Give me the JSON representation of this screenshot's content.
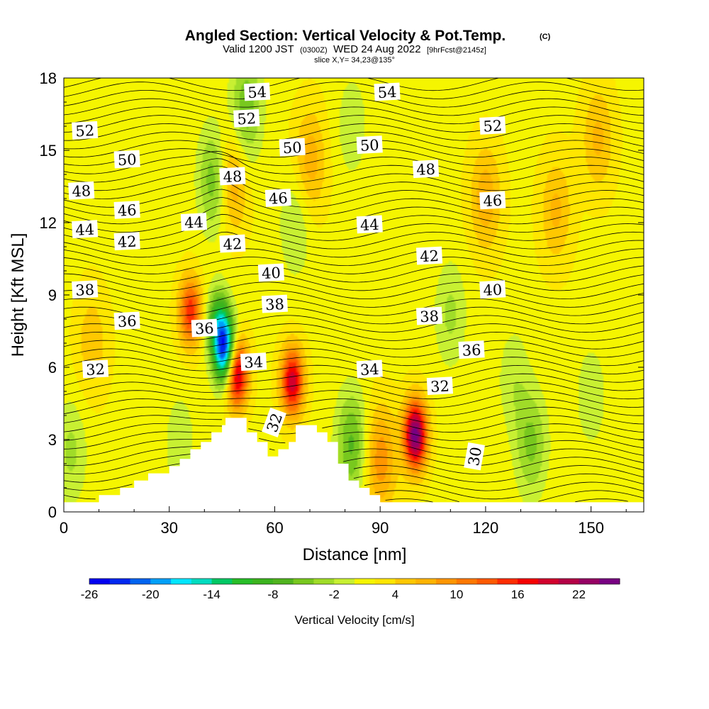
{
  "chart_data": {
    "type": "heatmap",
    "title": "Angled Section: Vertical Velocity & Pot.Temp.",
    "title_tag": "(C)",
    "subtitle_parts": [
      "Valid 1200 JST",
      "(0300Z)",
      "WED 24 Aug 2022",
      "[9hrFcst@2145z]"
    ],
    "slice_text": "slice X,Y= 34,23@135°",
    "xlabel": "Distance [nm]",
    "ylabel": "Height [Kft MSL]",
    "xlim": [
      0,
      165
    ],
    "ylim": [
      0,
      18
    ],
    "x_ticks": [
      0,
      30,
      60,
      90,
      120,
      150
    ],
    "y_ticks": [
      0,
      3,
      6,
      9,
      12,
      15,
      18
    ],
    "colorbar": {
      "title": "Vertical Velocity [cm/s]",
      "tick_labels": [
        -26,
        -20,
        -14,
        -8,
        -2,
        4,
        10,
        16,
        22
      ],
      "levels": [
        -26,
        -24,
        -22,
        -20,
        -18,
        -16,
        -14,
        -12,
        -10,
        -8,
        -6,
        -4,
        -2,
        0,
        2,
        4,
        6,
        8,
        10,
        12,
        14,
        16,
        18,
        20,
        22,
        24
      ],
      "colors": [
        "#0000f0",
        "#0028f0",
        "#0064f0",
        "#00a0f8",
        "#00e6ff",
        "#00dcc0",
        "#00c864",
        "#28be28",
        "#3cb41e",
        "#50b41e",
        "#78c81e",
        "#a0dc28",
        "#c8f032",
        "#f5f500",
        "#ffe600",
        "#ffc800",
        "#ffb400",
        "#ff9600",
        "#ff7800",
        "#ff5a00",
        "#ff2d00",
        "#f50000",
        "#d2002d",
        "#b40046",
        "#960064",
        "#780082"
      ]
    },
    "velocity_features": [
      {
        "x": 46,
        "y": 6.6,
        "value": -24
      },
      {
        "x": 44,
        "y": 7.8,
        "value": -12
      },
      {
        "x": 43,
        "y": 13.8,
        "value": -8
      },
      {
        "x": 52,
        "y": 17.0,
        "value": -6
      },
      {
        "x": 50,
        "y": 15.0,
        "value": -4
      },
      {
        "x": 66,
        "y": 12.0,
        "value": -4
      },
      {
        "x": 82,
        "y": 16.0,
        "value": -3
      },
      {
        "x": 82,
        "y": 2.8,
        "value": -8
      },
      {
        "x": 110,
        "y": 8.2,
        "value": -4
      },
      {
        "x": 128,
        "y": 5.5,
        "value": -3
      },
      {
        "x": 133,
        "y": 2.8,
        "value": -6
      },
      {
        "x": 150,
        "y": 4.8,
        "value": -3
      },
      {
        "x": 2,
        "y": 2.5,
        "value": -4
      },
      {
        "x": 33,
        "y": 2.8,
        "value": -3
      },
      {
        "x": 49,
        "y": 5.8,
        "value": 22
      },
      {
        "x": 48,
        "y": 14.0,
        "value": 10
      },
      {
        "x": 36,
        "y": 8.3,
        "value": 14
      },
      {
        "x": 65,
        "y": 5.4,
        "value": 18
      },
      {
        "x": 100,
        "y": 3.2,
        "value": 24
      },
      {
        "x": 90,
        "y": 2.2,
        "value": 8
      },
      {
        "x": 70,
        "y": 14.5,
        "value": 6
      },
      {
        "x": 120,
        "y": 13.0,
        "value": 6
      },
      {
        "x": 140,
        "y": 12.5,
        "value": 5
      },
      {
        "x": 152,
        "y": 15.5,
        "value": 5
      },
      {
        "x": 8,
        "y": 7.0,
        "value": 4
      }
    ],
    "theta_contours": [
      29,
      29.5,
      30,
      30.5,
      31,
      31.5,
      32,
      32.5,
      33,
      33.5,
      34,
      34.5,
      35,
      35.5,
      36,
      36.5,
      37,
      37.5,
      38,
      38.5,
      39,
      39.5,
      40,
      40.5,
      41,
      41.5,
      42,
      42.5,
      43,
      43.5,
      44,
      44.5,
      45,
      45.5,
      46,
      46.5,
      47,
      47.5,
      48,
      48.5,
      49,
      49.5,
      50,
      50.5,
      51,
      51.5,
      52,
      52.5,
      53,
      53.5,
      54,
      54.5
    ],
    "contour_labels": [
      {
        "text": "54",
        "x": 55,
        "y": 17.4
      },
      {
        "text": "54",
        "x": 92,
        "y": 17.4
      },
      {
        "text": "52",
        "x": 6,
        "y": 15.8
      },
      {
        "text": "52",
        "x": 52,
        "y": 16.3
      },
      {
        "text": "52",
        "x": 122,
        "y": 16.0
      },
      {
        "text": "50",
        "x": 18,
        "y": 14.6
      },
      {
        "text": "50",
        "x": 65,
        "y": 15.1
      },
      {
        "text": "50",
        "x": 87,
        "y": 15.2
      },
      {
        "text": "48",
        "x": 5,
        "y": 13.3
      },
      {
        "text": "48",
        "x": 48,
        "y": 13.9
      },
      {
        "text": "48",
        "x": 103,
        "y": 14.2
      },
      {
        "text": "46",
        "x": 18,
        "y": 12.5
      },
      {
        "text": "46",
        "x": 61,
        "y": 13.0
      },
      {
        "text": "46",
        "x": 122,
        "y": 12.9
      },
      {
        "text": "44",
        "x": 6,
        "y": 11.7
      },
      {
        "text": "44",
        "x": 37,
        "y": 12.0
      },
      {
        "text": "44",
        "x": 87,
        "y": 11.9
      },
      {
        "text": "42",
        "x": 18,
        "y": 11.2
      },
      {
        "text": "42",
        "x": 48,
        "y": 11.1
      },
      {
        "text": "42",
        "x": 104,
        "y": 10.6
      },
      {
        "text": "40",
        "x": 59,
        "y": 9.9
      },
      {
        "text": "40",
        "x": 122,
        "y": 9.2
      },
      {
        "text": "38",
        "x": 6,
        "y": 9.2
      },
      {
        "text": "38",
        "x": 60,
        "y": 8.6
      },
      {
        "text": "38",
        "x": 104,
        "y": 8.1
      },
      {
        "text": "36",
        "x": 18,
        "y": 7.9
      },
      {
        "text": "36",
        "x": 40,
        "y": 7.6
      },
      {
        "text": "36",
        "x": 116,
        "y": 6.7
      },
      {
        "text": "34",
        "x": 54,
        "y": 6.2
      },
      {
        "text": "34",
        "x": 87,
        "y": 5.9
      },
      {
        "text": "32",
        "x": 9,
        "y": 5.9
      },
      {
        "text": "32",
        "x": 60,
        "y": 3.7
      },
      {
        "text": "32",
        "x": 107,
        "y": 5.2
      },
      {
        "text": "30",
        "x": 117,
        "y": 2.3
      }
    ],
    "terrain": [
      [
        0,
        0.4
      ],
      [
        10,
        0.4
      ],
      [
        10,
        0.7
      ],
      [
        16,
        0.7
      ],
      [
        16,
        1.0
      ],
      [
        20,
        1.0
      ],
      [
        20,
        1.3
      ],
      [
        24,
        1.3
      ],
      [
        24,
        1.6
      ],
      [
        30,
        1.6
      ],
      [
        30,
        1.9
      ],
      [
        33,
        1.9
      ],
      [
        33,
        2.2
      ],
      [
        36,
        2.2
      ],
      [
        36,
        2.6
      ],
      [
        39,
        2.6
      ],
      [
        39,
        2.9
      ],
      [
        42,
        2.9
      ],
      [
        42,
        3.3
      ],
      [
        45,
        3.3
      ],
      [
        45,
        3.6
      ],
      [
        46,
        3.6
      ],
      [
        46,
        3.9
      ],
      [
        52,
        3.9
      ],
      [
        52,
        3.3
      ],
      [
        55,
        3.3
      ],
      [
        55,
        2.9
      ],
      [
        58,
        2.9
      ],
      [
        58,
        2.3
      ],
      [
        61,
        2.3
      ],
      [
        61,
        2.6
      ],
      [
        64,
        2.6
      ],
      [
        64,
        2.9
      ],
      [
        66,
        2.9
      ],
      [
        66,
        3.6
      ],
      [
        72,
        3.6
      ],
      [
        72,
        3.3
      ],
      [
        75,
        3.3
      ],
      [
        75,
        2.9
      ],
      [
        78,
        2.9
      ],
      [
        78,
        2.0
      ],
      [
        81,
        2.0
      ],
      [
        81,
        1.3
      ],
      [
        84,
        1.3
      ],
      [
        84,
        1.0
      ],
      [
        87,
        1.0
      ],
      [
        87,
        0.7
      ],
      [
        90,
        0.7
      ],
      [
        90,
        0.4
      ],
      [
        165,
        0.4
      ]
    ]
  }
}
